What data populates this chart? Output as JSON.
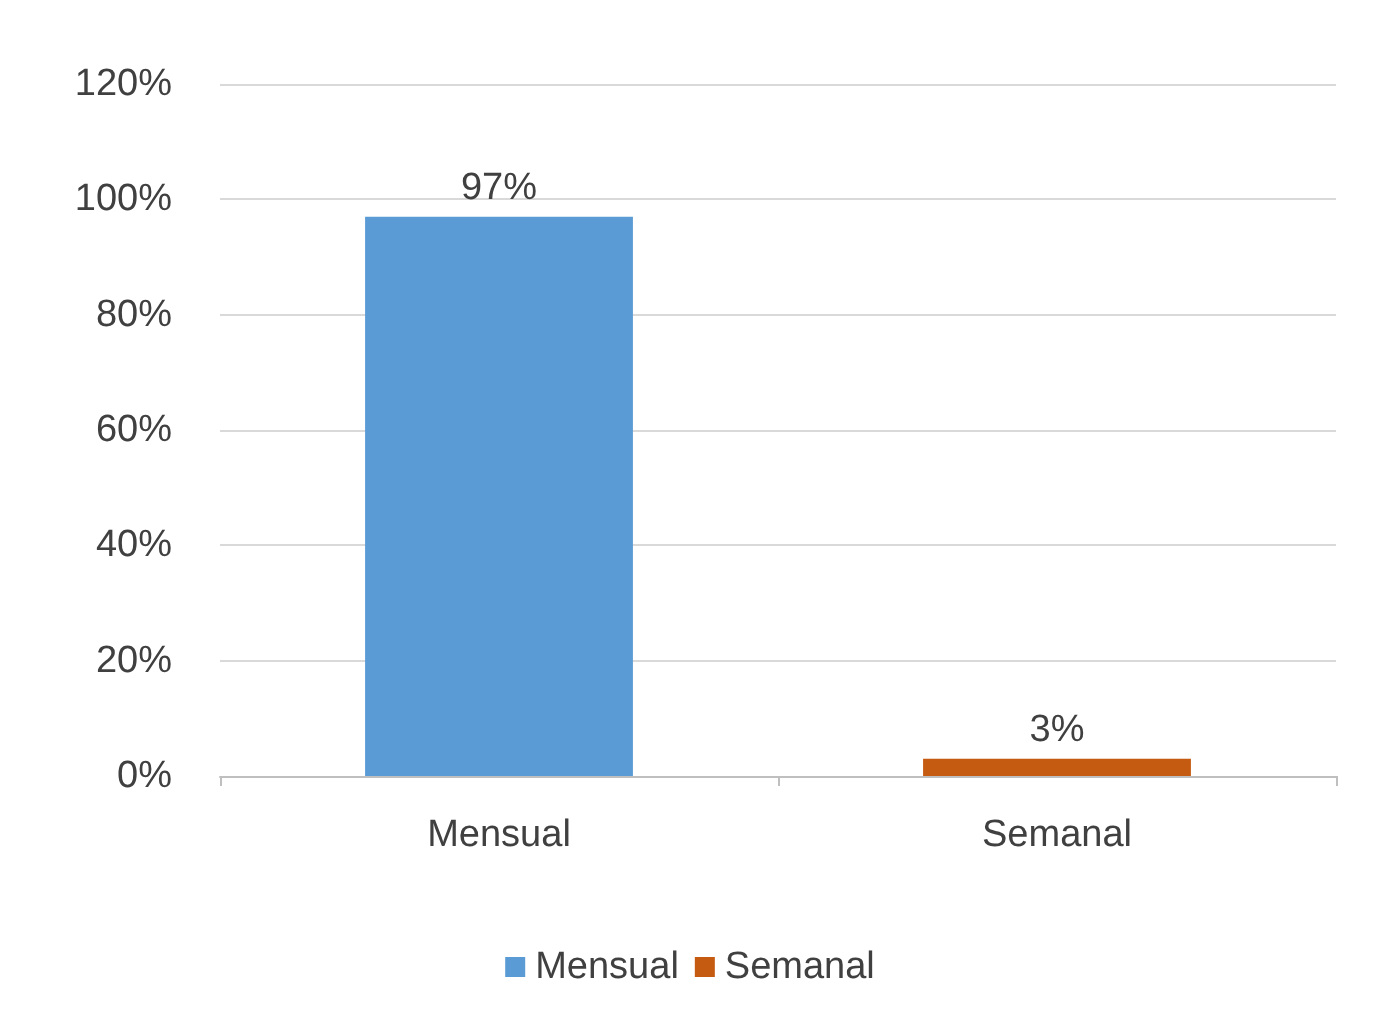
{
  "chart_data": {
    "type": "bar",
    "categories": [
      "Mensual",
      "Semanal"
    ],
    "series": [
      {
        "name": "Mensual",
        "color": "#5b9bd5",
        "values": [
          97,
          null
        ],
        "value_labels": [
          "97%",
          null
        ]
      },
      {
        "name": "Semanal",
        "color": "#c55a11",
        "values": [
          null,
          3
        ],
        "value_labels": [
          null,
          "3%"
        ]
      }
    ],
    "ylim": [
      0,
      120
    ],
    "yticks": [
      {
        "value": 0,
        "label": "0%"
      },
      {
        "value": 20,
        "label": "20%"
      },
      {
        "value": 40,
        "label": "40%"
      },
      {
        "value": 60,
        "label": "60%"
      },
      {
        "value": 80,
        "label": "80%"
      },
      {
        "value": 100,
        "label": "100%"
      },
      {
        "value": 120,
        "label": "120%"
      }
    ],
    "grid": "y",
    "legend": "bottom"
  }
}
